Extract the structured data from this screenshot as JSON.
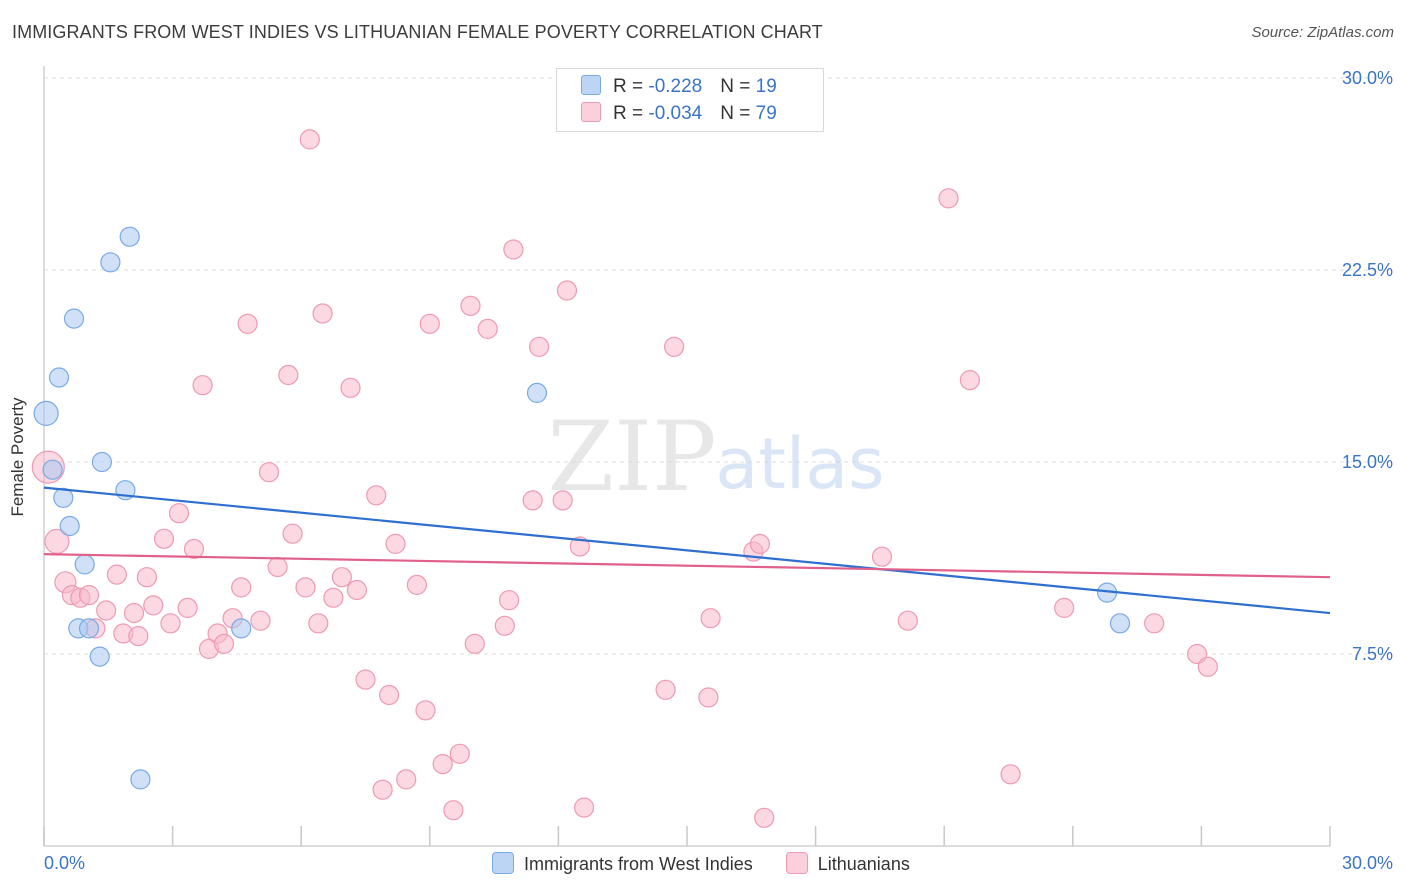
{
  "header": {
    "title": "IMMIGRANTS FROM WEST INDIES VS LITHUANIAN FEMALE POVERTY CORRELATION CHART",
    "source": "Source: ZipAtlas.com"
  },
  "watermark": {
    "zip": "ZIP",
    "atlas": "atlas"
  },
  "legend_top": {
    "rows": [
      {
        "r_label": "R = ",
        "r_value": "-0.228",
        "n_label": "N = ",
        "n_value": "19",
        "color": "#a9c8f0"
      },
      {
        "r_label": "R = ",
        "r_value": "-0.034",
        "n_label": "N = ",
        "n_value": "79",
        "color": "#f7b8cb"
      }
    ]
  },
  "legend_bottom": {
    "items": [
      {
        "label": "Immigrants from West Indies",
        "color": "#a9c8f0"
      },
      {
        "label": "Lithuanians",
        "color": "#f7b8cb"
      }
    ]
  },
  "chart_data": {
    "type": "scatter",
    "title": "IMMIGRANTS FROM WEST INDIES VS LITHUANIAN FEMALE POVERTY CORRELATION CHART",
    "xlabel": "",
    "ylabel": "Female Poverty",
    "xlim": [
      0,
      30
    ],
    "ylim": [
      0,
      30
    ],
    "x_tick_labels": [
      "0.0%",
      "30.0%"
    ],
    "y_ticks": [
      7.5,
      15.0,
      22.5,
      30.0
    ],
    "y_tick_labels": [
      "7.5%",
      "15.0%",
      "22.5%",
      "30.0%"
    ],
    "grid": true,
    "legend_position": "top-center",
    "series": [
      {
        "name": "Immigrants from West Indies",
        "color": "#a9c8f0",
        "stroke": "#7aaae6",
        "trend": {
          "x": [
            0,
            30
          ],
          "y": [
            14.0,
            9.1
          ],
          "color": "#2f6fd0"
        },
        "points": [
          [
            0.05,
            16.9
          ],
          [
            0.2,
            14.7
          ],
          [
            0.35,
            18.3
          ],
          [
            0.45,
            13.6
          ],
          [
            0.6,
            12.5
          ],
          [
            0.7,
            20.6
          ],
          [
            0.95,
            11.0
          ],
          [
            0.8,
            8.5
          ],
          [
            1.05,
            8.5
          ],
          [
            1.3,
            7.4
          ],
          [
            1.35,
            15.0
          ],
          [
            1.55,
            22.8
          ],
          [
            1.9,
            13.9
          ],
          [
            2.0,
            23.8
          ],
          [
            2.25,
            2.6
          ],
          [
            4.6,
            8.5
          ],
          [
            11.5,
            17.7
          ],
          [
            24.8,
            9.9
          ],
          [
            25.1,
            8.7
          ]
        ]
      },
      {
        "name": "Lithuanians",
        "color": "#f7b8cb",
        "stroke": "#ee9ab3",
        "trend": {
          "x": [
            0,
            30
          ],
          "y": [
            11.4,
            10.5
          ],
          "color": "#e0608a"
        },
        "points": [
          [
            0.1,
            14.8
          ],
          [
            0.3,
            11.9
          ],
          [
            0.5,
            10.3
          ],
          [
            0.65,
            9.8
          ],
          [
            0.85,
            9.7
          ],
          [
            1.05,
            9.8
          ],
          [
            1.2,
            8.5
          ],
          [
            1.45,
            9.2
          ],
          [
            1.7,
            10.6
          ],
          [
            1.85,
            8.3
          ],
          [
            2.1,
            9.1
          ],
          [
            2.2,
            8.2
          ],
          [
            2.4,
            10.5
          ],
          [
            2.55,
            9.4
          ],
          [
            2.8,
            12.0
          ],
          [
            2.95,
            8.7
          ],
          [
            3.15,
            13.0
          ],
          [
            3.35,
            9.3
          ],
          [
            3.5,
            11.6
          ],
          [
            3.7,
            18.0
          ],
          [
            3.85,
            7.7
          ],
          [
            4.05,
            8.3
          ],
          [
            4.2,
            7.9
          ],
          [
            4.4,
            8.9
          ],
          [
            4.6,
            10.1
          ],
          [
            4.75,
            20.4
          ],
          [
            5.05,
            8.8
          ],
          [
            5.25,
            14.6
          ],
          [
            5.45,
            10.9
          ],
          [
            5.7,
            18.4
          ],
          [
            5.8,
            12.2
          ],
          [
            6.1,
            10.1
          ],
          [
            6.2,
            27.6
          ],
          [
            6.4,
            8.7
          ],
          [
            6.5,
            20.8
          ],
          [
            6.75,
            9.7
          ],
          [
            6.95,
            10.5
          ],
          [
            7.15,
            17.9
          ],
          [
            7.3,
            10.0
          ],
          [
            7.5,
            6.5
          ],
          [
            7.75,
            13.7
          ],
          [
            7.9,
            2.2
          ],
          [
            8.05,
            5.9
          ],
          [
            8.2,
            11.8
          ],
          [
            8.45,
            2.6
          ],
          [
            8.7,
            10.2
          ],
          [
            8.9,
            5.3
          ],
          [
            9.0,
            20.4
          ],
          [
            9.3,
            3.2
          ],
          [
            9.55,
            1.4
          ],
          [
            9.7,
            3.6
          ],
          [
            9.95,
            21.1
          ],
          [
            10.05,
            7.9
          ],
          [
            10.35,
            20.2
          ],
          [
            10.75,
            8.6
          ],
          [
            10.85,
            9.6
          ],
          [
            10.95,
            23.3
          ],
          [
            11.4,
            13.5
          ],
          [
            11.55,
            19.5
          ],
          [
            12.1,
            13.5
          ],
          [
            12.2,
            21.7
          ],
          [
            12.5,
            11.7
          ],
          [
            12.6,
            1.5
          ],
          [
            14.5,
            6.1
          ],
          [
            14.7,
            19.5
          ],
          [
            15.5,
            5.8
          ],
          [
            15.55,
            8.9
          ],
          [
            16.55,
            11.5
          ],
          [
            16.7,
            11.8
          ],
          [
            16.8,
            1.1
          ],
          [
            19.55,
            11.3
          ],
          [
            20.15,
            8.8
          ],
          [
            21.1,
            25.3
          ],
          [
            21.6,
            18.2
          ],
          [
            22.55,
            2.8
          ],
          [
            23.8,
            9.3
          ],
          [
            25.9,
            8.7
          ],
          [
            26.9,
            7.5
          ],
          [
            27.15,
            7.0
          ]
        ]
      }
    ]
  }
}
